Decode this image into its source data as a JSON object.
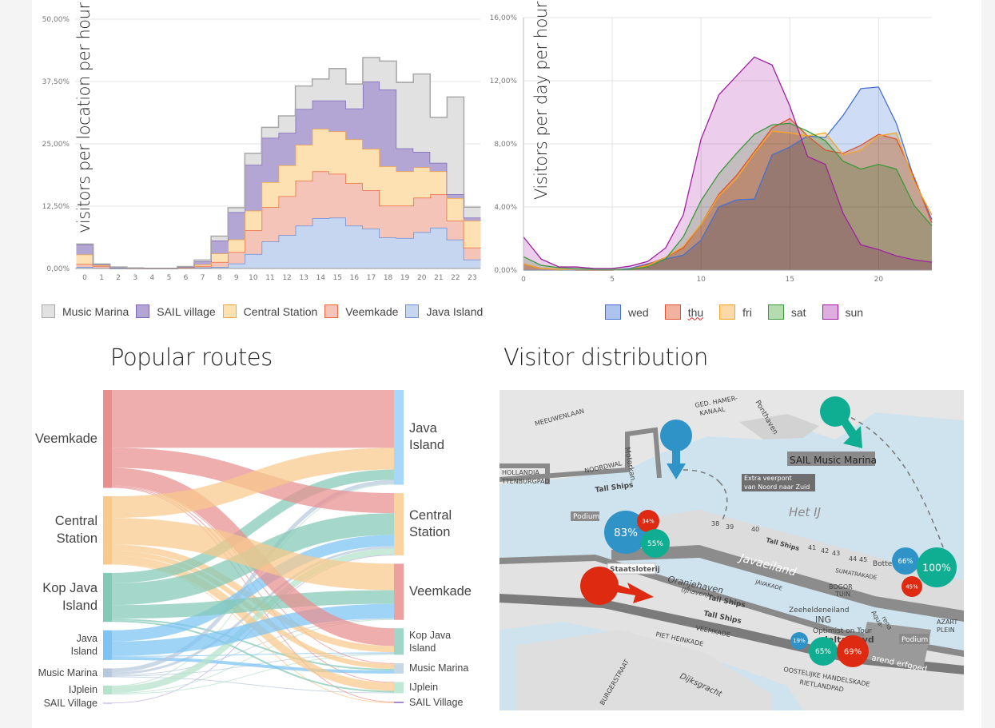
{
  "left_chart": {
    "ylabel": "visitors per location per hour",
    "chart_data": {
      "type": "area",
      "stacked": true,
      "step": true,
      "xlabel": "",
      "ylabel": "visitors per location per hour",
      "x": [
        0,
        1,
        2,
        3,
        4,
        5,
        6,
        7,
        8,
        9,
        10,
        11,
        12,
        13,
        14,
        15,
        16,
        17,
        18,
        19,
        20,
        21,
        22,
        23
      ],
      "xtick_labels": [
        "0",
        "1",
        "2",
        "3",
        "4",
        "5",
        "6",
        "7",
        "8",
        "9",
        "10",
        "11",
        "12",
        "13",
        "14",
        "15",
        "16",
        "17",
        "18",
        "19",
        "20",
        "21",
        "22",
        "23"
      ],
      "ylim": [
        0,
        50
      ],
      "yticks": [
        0,
        12.5,
        25,
        37.5,
        50
      ],
      "ytick_labels": [
        "0,00%",
        "12,50%",
        "25,00%",
        "37,50%",
        "50,00%"
      ],
      "grid": true,
      "legend_position": "bottom",
      "series": [
        {
          "name": "Java Island",
          "fill": "#c6d6f1",
          "stroke": "#6a8ed8",
          "values": [
            0.3,
            0.1,
            0,
            0,
            0,
            0,
            0.1,
            0.2,
            0.3,
            1.0,
            2.9,
            5.4,
            6.7,
            8.6,
            10.1,
            10.2,
            8.6,
            8.0,
            6.2,
            6.1,
            7.3,
            8.2,
            5.8,
            1.8
          ]
        },
        {
          "name": "Veemkade",
          "fill": "#f4c4b9",
          "stroke": "#ec6a3d",
          "values": [
            0.6,
            0.4,
            0.1,
            0,
            0,
            0,
            0.1,
            0.3,
            1.0,
            2.3,
            4.8,
            6.9,
            7.8,
            9.0,
            9.4,
            8.8,
            8.5,
            7.7,
            6.4,
            6.5,
            6.9,
            6.7,
            3.8,
            2.4
          ]
        },
        {
          "name": "Central Station",
          "fill": "#fde1b3",
          "stroke": "#f4a742",
          "values": [
            1.9,
            0.2,
            0.1,
            0.1,
            0,
            0,
            0.1,
            0.3,
            1.7,
            2.5,
            3.9,
            5.0,
            6.2,
            7.2,
            8.5,
            8.5,
            8.8,
            8.3,
            7.9,
            6.9,
            6.1,
            4.6,
            4.5,
            5.4
          ]
        },
        {
          "name": "SAIL village",
          "fill": "#b3a6d4",
          "stroke": "#7c68b8",
          "values": [
            2.0,
            0.1,
            0,
            0,
            0,
            0,
            0,
            0.6,
            2.6,
            5.5,
            9.2,
            8.9,
            6.5,
            7.2,
            5.7,
            6.2,
            6.2,
            13.5,
            15.4,
            4.6,
            3.1,
            1.7,
            0.8,
            0.6
          ]
        },
        {
          "name": "Music Marina",
          "fill": "#e1e1e1",
          "stroke": "#a8a8a8",
          "values": [
            0.1,
            0.1,
            0.1,
            0,
            0,
            0,
            0.1,
            0.3,
            0.9,
            0.9,
            2.3,
            2.1,
            3.4,
            4.6,
            4.3,
            6.4,
            4.9,
            4.8,
            5.7,
            13.2,
            15.6,
            9.1,
            19.5,
            2.1
          ]
        }
      ]
    },
    "legend": [
      "Music Marina",
      "SAIL village",
      "Central Station",
      "Veemkade",
      "Java Island"
    ]
  },
  "right_chart": {
    "ylabel": "Visitors per day per hour",
    "chart_data": {
      "type": "area",
      "stacked": false,
      "xlabel": "",
      "ylabel": "Visitors per day per hour",
      "x": [
        0,
        1,
        2,
        3,
        4,
        5,
        6,
        7,
        8,
        9,
        10,
        11,
        12,
        13,
        14,
        15,
        16,
        17,
        18,
        19,
        20,
        21,
        22,
        23
      ],
      "xlim": [
        0,
        23
      ],
      "xticks": [
        0,
        5,
        10,
        15,
        20
      ],
      "xtick_labels": [
        "0",
        "5",
        "10",
        "15",
        "20"
      ],
      "ylim": [
        0,
        16
      ],
      "yticks": [
        0,
        4,
        8,
        12,
        16
      ],
      "ytick_labels": [
        "0,00%",
        "4,00%",
        "8,00%",
        "12,00%",
        "16,00%"
      ],
      "grid": true,
      "legend_position": "bottom",
      "series": [
        {
          "name": "wed",
          "fill": "#aec4ef",
          "stroke": "#4571d3",
          "values": [
            0,
            0,
            0,
            0,
            0,
            0,
            0.1,
            0.4,
            0.7,
            0.95,
            1.9,
            4.0,
            4.45,
            4.5,
            7.3,
            7.8,
            8.5,
            8.4,
            9.8,
            11.5,
            11.6,
            9.3,
            5.8,
            3.2
          ]
        },
        {
          "name": "thu",
          "fill": "#f2b2a0",
          "stroke": "#e0522f",
          "values": [
            0.4,
            0.1,
            0.05,
            0,
            0,
            0,
            0.05,
            0.35,
            0.8,
            1.4,
            2.9,
            4.8,
            6.0,
            7.5,
            9.0,
            9.6,
            8.5,
            7.6,
            7.4,
            7.9,
            8.6,
            8.3,
            5.9,
            3.0
          ]
        },
        {
          "name": "fri",
          "fill": "#fcd9a6",
          "stroke": "#f5a623",
          "values": [
            0.4,
            0.1,
            0.05,
            0,
            0,
            0,
            0.05,
            0.3,
            0.8,
            1.5,
            2.9,
            4.7,
            5.8,
            7.4,
            8.8,
            8.7,
            8.5,
            8.7,
            7.3,
            7.6,
            8.5,
            8.7,
            5.6,
            3.5
          ]
        },
        {
          "name": "sat",
          "fill": "#b5dcb1",
          "stroke": "#3a9a3a",
          "values": [
            0.85,
            0.3,
            0.15,
            0.1,
            0.05,
            0.05,
            0.05,
            0.2,
            0.7,
            2.1,
            4.4,
            6.1,
            7.4,
            8.6,
            9.2,
            9.3,
            8.8,
            8.2,
            6.9,
            6.4,
            6.7,
            6.4,
            4.1,
            2.8
          ]
        },
        {
          "name": "sun",
          "fill": "#dfaee0",
          "stroke": "#a020a0",
          "values": [
            2.1,
            0.7,
            0.2,
            0.2,
            0.1,
            0.1,
            0.25,
            0.55,
            1.4,
            3.5,
            8.3,
            11.1,
            12.3,
            13.5,
            13.0,
            10.4,
            7.2,
            6.7,
            3.6,
            1.6,
            1.3,
            0.9,
            0.65,
            0.5
          ]
        }
      ]
    },
    "legend": [
      "wed",
      "thu",
      "fri",
      "sat",
      "sun"
    ]
  },
  "sankey": {
    "title": "Popular routes",
    "chart_data": {
      "type": "sankey",
      "sources": [
        {
          "label": "Veemkade",
          "color": "#e98f8f"
        },
        {
          "label": "Central\nStation",
          "color": "#f8c98a"
        },
        {
          "label": "Kop Java\nIsland",
          "color": "#82c9b6"
        },
        {
          "label": "Java\nIsland",
          "color": "#7cc4f4"
        },
        {
          "label": "Music Marina",
          "color": "#b7c9dd"
        },
        {
          "label": "IJplein",
          "color": "#b4e2cb"
        },
        {
          "label": "SAIL Village",
          "color": "#b49ce0"
        }
      ],
      "targets": [
        {
          "label": "Java\nIsland",
          "color": "#a6d8fb"
        },
        {
          "label": "Central\nStation",
          "color": "#fad4a0"
        },
        {
          "label": "Veemkade",
          "color": "#eca0a0"
        },
        {
          "label": "Kop Java\nIsland",
          "color": "#9fd6c7"
        },
        {
          "label": "Music Marina",
          "color": "#c8d7e6"
        },
        {
          "label": "IJplein",
          "color": "#c0e8d5"
        },
        {
          "label": "SAIL Village",
          "color": "#a38ad8"
        }
      ],
      "links": [
        [
          72,
          25,
          0,
          22,
          1,
          1,
          1
        ],
        [
          27,
          0,
          33,
          8,
          6,
          10,
          1
        ],
        [
          13,
          27,
          17,
          0,
          2,
          2,
          0
        ],
        [
          0,
          14,
          18,
          1,
          4,
          0,
          0
        ],
        [
          5,
          3,
          1,
          1,
          0,
          1,
          0
        ],
        [
          1,
          8,
          1,
          1,
          0,
          0,
          0
        ],
        [
          0,
          0.5,
          0,
          0,
          0,
          0,
          0
        ]
      ]
    }
  },
  "map": {
    "title": "Visitor distribution",
    "colors": {
      "blue": "#2f93c8",
      "red": "#dd2a10",
      "green": "#0fae93",
      "water": "#cfe3ee",
      "land": "#e4e4e4"
    },
    "markers": [
      {
        "label": "",
        "color": "blue",
        "arrow": "down"
      },
      {
        "label": "",
        "color": "green",
        "arrow": "down-right"
      },
      {
        "label": "",
        "color": "red",
        "arrow": "right"
      },
      {
        "label": "83%",
        "color": "blue"
      },
      {
        "label": "34%",
        "color": "red"
      },
      {
        "label": "55%",
        "color": "green"
      },
      {
        "label": "66%",
        "color": "blue"
      },
      {
        "label": "100%",
        "color": "green"
      },
      {
        "label": "45%",
        "color": "red"
      },
      {
        "label": "19%",
        "color": "blue"
      },
      {
        "label": "65%",
        "color": "green"
      },
      {
        "label": "69%",
        "color": "red"
      }
    ],
    "callouts": [
      "SAIL Music Marina",
      "Extra veerpont",
      "van Noord naar Zuid",
      "Podium",
      "Staatsloterij",
      "Podium"
    ],
    "labels": [
      "MEEUWENLAAN",
      "HOLLANDIA",
      "TTENBURGPAD",
      "NOORDWAL",
      "Tall Ships",
      "Motorkan.",
      "GED. HAMER-",
      "KANAAL",
      "Ponthaven",
      "Het IJ",
      "38",
      "39",
      "40",
      "41",
      "42",
      "43",
      "44",
      "45",
      "Tall Ships",
      "Javaeiland",
      "SUMATRAKADE",
      "JAVAKADE",
      "Bottel",
      "Oranjehaven",
      "(IJhaven)",
      "Tall Ships",
      "Tall Ships",
      "VEEMKADE",
      "PIET HEINKADE",
      "Zeeheldeneiland",
      "ING",
      "Aqua-",
      "rena",
      "Optimist on Tour",
      "delta lloyd",
      "BOGOR",
      "TUIN",
      "AZART",
      "PLEIN",
      "arend erfgoed",
      "OOSTELIJKE HANDELSKADE",
      "RIETLANDPAD",
      "Dijksgracht",
      "BURGERSTRAAT"
    ]
  }
}
